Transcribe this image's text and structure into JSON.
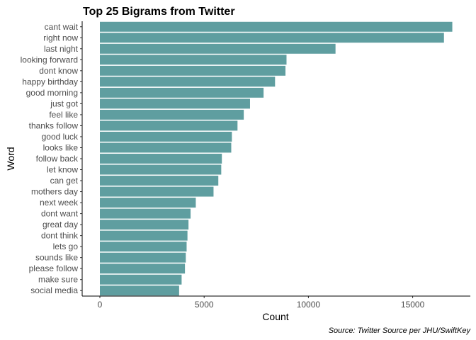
{
  "chart_data": {
    "type": "bar",
    "orientation": "horizontal",
    "title": "Top 25 Bigrams from Twitter",
    "xlabel": "Count",
    "ylabel": "Word",
    "caption": "Source: Twitter Source per JHU/SwiftKey",
    "categories": [
      "cant wait",
      "right now",
      "last night",
      "looking forward",
      "dont know",
      "happy birthday",
      "good morning",
      "just got",
      "feel like",
      "thanks follow",
      "good luck",
      "looks like",
      "follow back",
      "let know",
      "can get",
      "mothers day",
      "next week",
      "dont want",
      "great day",
      "dont think",
      "lets go",
      "sounds like",
      "please follow",
      "make sure",
      "social media"
    ],
    "values": [
      16900,
      16500,
      11300,
      8950,
      8900,
      8400,
      7850,
      7200,
      6900,
      6600,
      6330,
      6300,
      5850,
      5820,
      5680,
      5450,
      4600,
      4350,
      4250,
      4200,
      4160,
      4120,
      4080,
      3920,
      3800
    ],
    "xlim": [
      0,
      17300
    ],
    "xticks": [
      0,
      5000,
      10000,
      15000
    ],
    "xtick_labels": [
      "0",
      "5000",
      "10000",
      "15000"
    ],
    "bar_color": "#5f9ea0",
    "grid": false
  }
}
